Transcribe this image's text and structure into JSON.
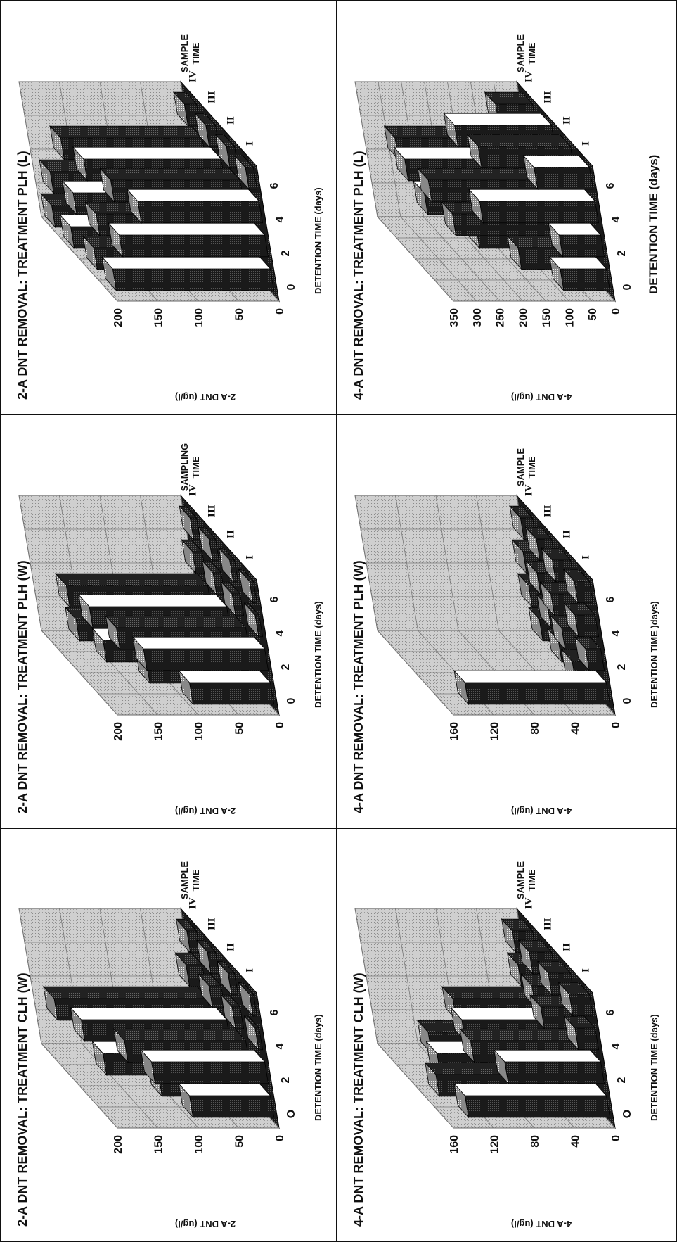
{
  "panels": [
    {
      "title": "2-A DNT REMOVAL: TREATMENT CLH (W)",
      "ylabel": "2-A DNT (ug/l)",
      "xlabel": "DETENTION TIME (days)",
      "zlabel": "SAMPLE TIME",
      "yticks": [
        "0",
        "50",
        "100",
        "150",
        "200"
      ],
      "xticks": [
        "O",
        "2",
        "4",
        "6"
      ],
      "zticks": [
        "I",
        "II",
        "III",
        "IV"
      ],
      "chart_data": {
        "type": "bar",
        "title": "2-A DNT REMOVAL: TREATMENT CLH (W)",
        "xlabel": "DETENTION TIME (days)",
        "ylabel": "2-A DNT (ug/l)",
        "zlabel": "SAMPLE TIME",
        "ylim": [
          0,
          200
        ],
        "categories": [
          "0",
          "2",
          "4",
          "6"
        ],
        "series": [
          {
            "name": "I",
            "values": [
              100,
              140,
              5,
              5
            ]
          },
          {
            "name": "II",
            "values": [
              115,
              150,
              10,
              8
            ]
          },
          {
            "name": "III",
            "values": [
              160,
              180,
              15,
              10
            ]
          },
          {
            "name": "IV",
            "values": [
              120,
              190,
              20,
              12
            ]
          }
        ]
      }
    },
    {
      "title": "4-A DNT REMOVAL: TREATMENT CLH (W)",
      "ylabel": "4-A DNT (ug/l)",
      "xlabel": "DETENTION TIME (days)",
      "zlabel": "SAMPLE TIME",
      "yticks": [
        "0",
        "40",
        "80",
        "120",
        "160"
      ],
      "xticks": [
        "O",
        "2",
        "4",
        "6"
      ],
      "zticks": [
        "I",
        "II",
        "III",
        "IV"
      ],
      "chart_data": {
        "type": "bar",
        "title": "4-A DNT REMOVAL: TREATMENT CLH (W)",
        "xlabel": "DETENTION TIME (days)",
        "ylabel": "4-A DNT (ug/l)",
        "zlabel": "SAMPLE TIME",
        "ylim": [
          0,
          160
        ],
        "categories": [
          "0",
          "2",
          "4",
          "6"
        ],
        "series": [
          {
            "name": "I",
            "values": [
              140,
              95,
              20,
              20
            ]
          },
          {
            "name": "II",
            "values": [
              150,
              110,
              35,
              22
            ]
          },
          {
            "name": "III",
            "values": [
              130,
              100,
              25,
              22
            ]
          },
          {
            "name": "IV",
            "values": [
              120,
              90,
              20,
              20
            ]
          }
        ]
      }
    },
    {
      "title": "2-A DNT REMOVAL: TREATMENT PLH (W)",
      "ylabel": "2-A DNT (ug/l)",
      "xlabel": "DETENTION TIME (days)",
      "zlabel": "SAMPLING TIME",
      "yticks": [
        "0",
        "50",
        "100",
        "150",
        "200"
      ],
      "xticks": [
        "0",
        "2",
        "4",
        "6"
      ],
      "zticks": [
        "I",
        "II",
        "III",
        "IV"
      ],
      "chart_data": {
        "type": "bar",
        "title": "2-A DNT REMOVAL: TREATMENT PLH (W)",
        "xlabel": "DETENTION TIME (days)",
        "ylabel": "2-A DNT (ug/l)",
        "zlabel": "SAMPLING TIME",
        "ylim": [
          0,
          200
        ],
        "categories": [
          "0",
          "2",
          "4",
          "6"
        ],
        "series": [
          {
            "name": "I",
            "values": [
              100,
              150,
              5,
              5
            ]
          },
          {
            "name": "II",
            "values": [
              130,
              160,
              10,
              6
            ]
          },
          {
            "name": "III",
            "values": [
              160,
              170,
              10,
              8
            ]
          },
          {
            "name": "IV",
            "values": [
              170,
              175,
              12,
              8
            ]
          }
        ]
      }
    },
    {
      "title": "4-A DNT REMOVAL: TREATMENT PLH (W)",
      "ylabel": "4-A DNT (ug/l)",
      "xlabel": "DETENTION TIME )days)",
      "zlabel": "SAMPLE TIME",
      "yticks": [
        "0",
        "40",
        "80",
        "120",
        "160"
      ],
      "xticks": [
        "0",
        "2",
        "4",
        "6"
      ],
      "zticks": [
        "I",
        "II",
        "III",
        "IV"
      ],
      "chart_data": {
        "type": "bar",
        "title": "4-A DNT REMOVAL: TREATMENT PLH (W)",
        "xlabel": "DETENTION TIME )days)",
        "ylabel": "4-A DNT (ug/l)",
        "zlabel": "SAMPLE TIME",
        "ylim": [
          0,
          160
        ],
        "categories": [
          "0",
          "2",
          "4",
          "6"
        ],
        "series": [
          {
            "name": "I",
            "values": [
              140,
              15,
              20,
              15
            ]
          },
          {
            "name": "II",
            "values": [
              15,
              20,
              25,
              18
            ]
          },
          {
            "name": "III",
            "values": [
              10,
              15,
              20,
              15
            ]
          },
          {
            "name": "IV",
            "values": [
              10,
              15,
              15,
              12
            ]
          }
        ]
      }
    },
    {
      "title": "2-A DNT REMOVAL: TREATMENT PLH (L)",
      "ylabel": "2-A DNT (ug/l)",
      "xlabel": "DETENTION TIME (days)",
      "zlabel": "SAMPLE TIME",
      "yticks": [
        "0",
        "50",
        "100",
        "150",
        "200"
      ],
      "xticks": [
        "0",
        "2",
        "4",
        "6"
      ],
      "zticks": [
        "I",
        "II",
        "III",
        "IV"
      ],
      "chart_data": {
        "type": "bar",
        "title": "2-A DNT REMOVAL: TREATMENT PLH (L)",
        "xlabel": "DETENTION TIME (days)",
        "ylabel": "2-A DNT (ug/l)",
        "zlabel": "SAMPLE TIME",
        "ylim": [
          0,
          200
        ],
        "categories": [
          "0",
          "2",
          "4",
          "6"
        ],
        "series": [
          {
            "name": "I",
            "values": [
              195,
              180,
              150,
              10
            ]
          },
          {
            "name": "II",
            "values": [
              195,
              185,
              160,
              10
            ]
          },
          {
            "name": "III",
            "values": [
              200,
              190,
              170,
              12
            ]
          },
          {
            "name": "IV",
            "values": [
              200,
              195,
              175,
              15
            ]
          }
        ]
      }
    },
    {
      "title": "4-A DNT REMOVAL: TREATMENT PLH (L)",
      "ylabel": "4-A DNT (ug/l)",
      "xlabel": "DETENTION TIME (days)",
      "zlabel": "SAMPLE TIME",
      "yticks": [
        "0",
        "50",
        "100",
        "150",
        "200",
        "250",
        "300",
        "350"
      ],
      "xticks": [
        "0",
        "2",
        "4",
        "6"
      ],
      "zticks": [
        "I",
        "II",
        "III",
        "IV"
      ],
      "chart_data": {
        "type": "bar",
        "title": "4-A DNT REMOVAL: TREATMENT PLH (L)",
        "xlabel": "DETENTION TIME (days)",
        "ylabel": "4-A DNT (ug/l)",
        "zlabel": "SAMPLE TIME",
        "ylim": [
          0,
          350
        ],
        "categories": [
          "0",
          "2",
          "4",
          "6"
        ],
        "series": [
          {
            "name": "I",
            "values": [
              100,
              90,
              250,
              120
            ]
          },
          {
            "name": "II",
            "values": [
              150,
              280,
              320,
              200
            ]
          },
          {
            "name": "III",
            "values": [
              200,
              300,
              330,
              210
            ]
          },
          {
            "name": "IV",
            "values": [
              130,
              200,
              310,
              80
            ]
          }
        ]
      }
    }
  ]
}
